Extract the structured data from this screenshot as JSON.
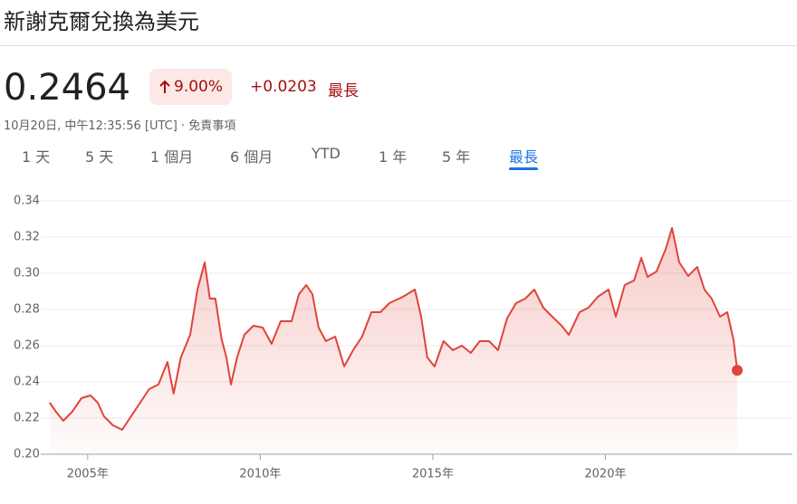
{
  "header": {
    "title": "新謝克爾兌換為美元",
    "price": "0.2464",
    "change_percent": "9.00%",
    "change": "+0.0203",
    "period": "最長",
    "timestamp": "10月20日, 中午12:35:56 [UTC]",
    "disclaimer": "免責事項"
  },
  "tabs": [
    "1 天",
    "5 天",
    "1 個月",
    "6 個月",
    "YTD",
    "1 年",
    "5 年",
    "最長"
  ],
  "selected_tab": 7,
  "chart_data": {
    "type": "line",
    "color": "#e0443a",
    "x": [
      2003.9,
      2004.08,
      2004.29,
      2004.55,
      2004.82,
      2005.08,
      2005.29,
      2005.47,
      2005.73,
      2006.0,
      2006.26,
      2006.52,
      2006.78,
      2007.05,
      2007.31,
      2007.49,
      2007.7,
      2007.97,
      2008.18,
      2008.39,
      2008.54,
      2008.7,
      2008.88,
      2009.02,
      2009.15,
      2009.33,
      2009.54,
      2009.8,
      2010.07,
      2010.33,
      2010.59,
      2010.91,
      2011.12,
      2011.33,
      2011.51,
      2011.69,
      2011.9,
      2012.17,
      2012.43,
      2012.69,
      2012.95,
      2013.22,
      2013.48,
      2013.74,
      2014.13,
      2014.48,
      2014.66,
      2014.84,
      2015.05,
      2015.31,
      2015.58,
      2015.84,
      2016.1,
      2016.36,
      2016.63,
      2016.89,
      2017.15,
      2017.41,
      2017.68,
      2017.94,
      2018.2,
      2018.46,
      2018.73,
      2018.94,
      2019.25,
      2019.51,
      2019.78,
      2020.09,
      2020.3,
      2020.56,
      2020.83,
      2021.04,
      2021.22,
      2021.48,
      2021.75,
      2021.93,
      2022.14,
      2022.4,
      2022.66,
      2022.87,
      2023.08,
      2023.32,
      2023.53,
      2023.71,
      2023.82
    ],
    "values": [
      0.2285,
      0.2235,
      0.2185,
      0.2235,
      0.231,
      0.2325,
      0.2285,
      0.221,
      0.216,
      0.2135,
      0.221,
      0.2285,
      0.236,
      0.2385,
      0.251,
      0.2335,
      0.2535,
      0.266,
      0.291,
      0.306,
      0.286,
      0.286,
      0.2635,
      0.2535,
      0.2385,
      0.2535,
      0.266,
      0.271,
      0.27,
      0.261,
      0.2735,
      0.2735,
      0.2885,
      0.2935,
      0.2885,
      0.27,
      0.2625,
      0.265,
      0.2485,
      0.2575,
      0.265,
      0.2785,
      0.2785,
      0.2835,
      0.287,
      0.291,
      0.276,
      0.2535,
      0.2485,
      0.2625,
      0.2575,
      0.26,
      0.256,
      0.2625,
      0.2625,
      0.2575,
      0.275,
      0.2835,
      0.286,
      0.291,
      0.281,
      0.276,
      0.271,
      0.266,
      0.2785,
      0.281,
      0.287,
      0.291,
      0.276,
      0.2935,
      0.296,
      0.3085,
      0.298,
      0.301,
      0.3135,
      0.325,
      0.306,
      0.2985,
      0.3035,
      0.291,
      0.286,
      0.276,
      0.2785,
      0.2635,
      0.2464
    ],
    "xlim": [
      2003.64,
      2025.42
    ],
    "xticks": [
      {
        "value": 2005,
        "label": "2005年"
      },
      {
        "value": 2010,
        "label": "2010年"
      },
      {
        "value": 2015,
        "label": "2015年"
      },
      {
        "value": 2020,
        "label": "2020年"
      }
    ],
    "ylim": [
      0.2,
      0.34
    ],
    "yticks": [
      {
        "value": 0.2,
        "label": "0.20"
      },
      0.22,
      0.24,
      0.26,
      0.28,
      {
        "value": 0.3,
        "label": "0.30"
      },
      0.32,
      0.34
    ],
    "grid": true
  }
}
